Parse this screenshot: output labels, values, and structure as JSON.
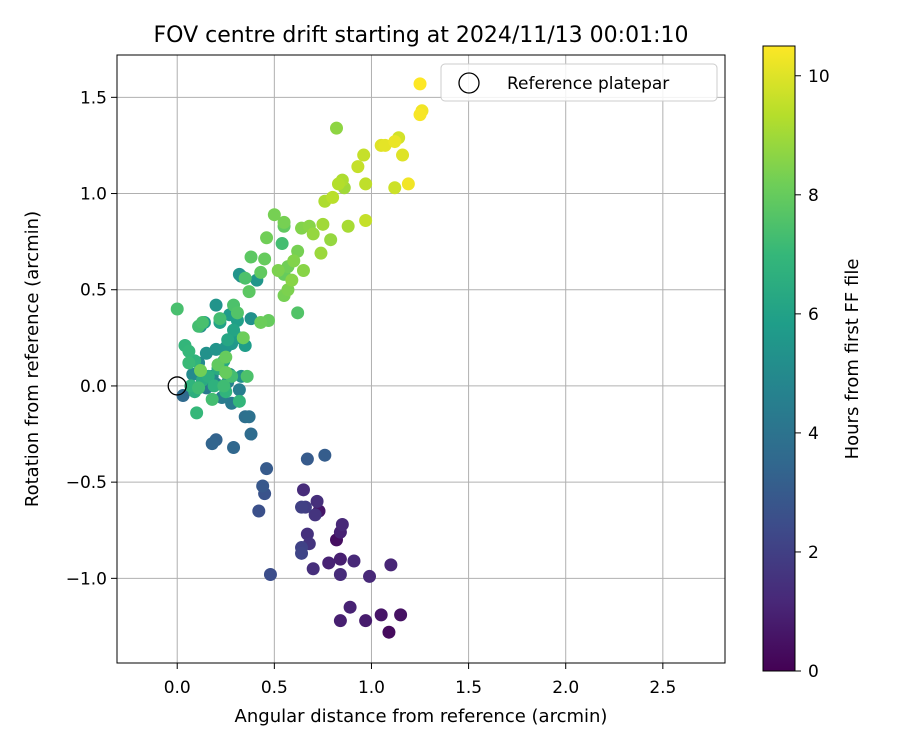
{
  "chart_data": {
    "type": "scatter",
    "title": "FOV centre drift starting at 2024/11/13 00:01:10",
    "xlabel": "Angular distance from reference (arcmin)",
    "ylabel": "Rotation from reference (arcmin)",
    "xlim": [
      -0.31,
      2.82
    ],
    "ylim": [
      -1.44,
      1.72
    ],
    "xticks": [
      0.0,
      0.5,
      1.0,
      1.5,
      2.0,
      2.5
    ],
    "xtick_labels": [
      "0.0",
      "0.5",
      "1.0",
      "1.5",
      "2.0",
      "2.5"
    ],
    "yticks": [
      -1.0,
      -0.5,
      0.0,
      0.5,
      1.0,
      1.5
    ],
    "ytick_labels": [
      "−1.0",
      "−0.5",
      "0.0",
      "0.5",
      "1.0",
      "1.5"
    ],
    "grid": true,
    "legend": {
      "placement": "upper right",
      "entries": [
        {
          "label": "Reference platepar",
          "marker": "open-circle",
          "x": 0.0,
          "y": 0.0
        }
      ]
    },
    "colorbar": {
      "label": "Hours from first FF file",
      "colormap": "viridis",
      "range": [
        0,
        10.5
      ],
      "ticks": [
        0,
        2,
        4,
        6,
        8,
        10
      ],
      "tick_labels": [
        "0",
        "2",
        "4",
        "6",
        "8",
        "10"
      ]
    },
    "colormap_stops": [
      "#440154",
      "#482878",
      "#3e4989",
      "#31688e",
      "#26828e",
      "#1f9e89",
      "#35b779",
      "#6ece58",
      "#b5de2b",
      "#fde725"
    ],
    "series": [
      {
        "points": [
          [
            1.09,
            -1.28,
            0.3
          ],
          [
            1.15,
            -1.19,
            0.5
          ],
          [
            1.05,
            -1.19,
            0.6
          ],
          [
            0.97,
            -1.22,
            0.8
          ],
          [
            0.84,
            -1.22,
            0.9
          ],
          [
            0.89,
            -1.15,
            1.0
          ],
          [
            1.1,
            -0.93,
            1.1
          ],
          [
            0.99,
            -0.99,
            1.2
          ],
          [
            0.84,
            -0.98,
            1.3
          ],
          [
            0.7,
            -0.95,
            1.4
          ],
          [
            0.78,
            -0.92,
            1.0
          ],
          [
            0.84,
            -0.9,
            0.9
          ],
          [
            0.91,
            -0.91,
            1.2
          ],
          [
            0.82,
            -0.8,
            0.4
          ],
          [
            0.84,
            -0.76,
            1.0
          ],
          [
            0.85,
            -0.72,
            1.2
          ],
          [
            0.67,
            -0.77,
            1.5
          ],
          [
            0.68,
            -0.82,
            1.6
          ],
          [
            0.73,
            -0.65,
            0.6
          ],
          [
            0.72,
            -0.6,
            1.4
          ],
          [
            0.71,
            -0.67,
            1.6
          ],
          [
            0.66,
            -0.63,
            1.9
          ],
          [
            0.64,
            -0.63,
            2.0
          ],
          [
            0.65,
            -0.54,
            1.3
          ],
          [
            0.64,
            -0.84,
            2.1
          ],
          [
            0.64,
            -0.87,
            2.2
          ],
          [
            0.48,
            -0.98,
            2.5
          ],
          [
            0.42,
            -0.65,
            2.6
          ],
          [
            0.45,
            -0.56,
            2.7
          ],
          [
            0.44,
            -0.52,
            2.9
          ],
          [
            0.46,
            -0.43,
            3.0
          ],
          [
            0.67,
            -0.38,
            3.0
          ],
          [
            0.76,
            -0.36,
            3.1
          ],
          [
            0.2,
            -0.28,
            3.3
          ],
          [
            0.18,
            -0.3,
            3.4
          ],
          [
            0.29,
            -0.32,
            3.5
          ],
          [
            0.38,
            -0.25,
            3.7
          ],
          [
            0.35,
            -0.16,
            3.8
          ],
          [
            0.37,
            -0.16,
            3.9
          ],
          [
            0.03,
            -0.05,
            3.6
          ],
          [
            0.15,
            -0.01,
            4.2
          ],
          [
            0.23,
            -0.06,
            4.4
          ],
          [
            0.28,
            -0.09,
            4.3
          ],
          [
            0.32,
            -0.02,
            4.5
          ],
          [
            0.26,
            0.02,
            4.7
          ],
          [
            0.2,
            0.01,
            4.8
          ],
          [
            0.18,
            0.05,
            4.9
          ],
          [
            0.23,
            0.09,
            5.0
          ],
          [
            0.27,
            0.06,
            5.1
          ],
          [
            0.33,
            0.05,
            5.2
          ],
          [
            0.08,
            0.06,
            5.0
          ],
          [
            0.11,
            0.12,
            4.9
          ],
          [
            0.15,
            0.17,
            5.3
          ],
          [
            0.2,
            0.19,
            5.4
          ],
          [
            0.25,
            0.2,
            5.5
          ],
          [
            0.28,
            0.22,
            5.6
          ],
          [
            0.32,
            0.25,
            5.7
          ],
          [
            0.35,
            0.21,
            5.8
          ],
          [
            0.38,
            0.35,
            5.3
          ],
          [
            0.33,
            0.57,
            5.2
          ],
          [
            0.32,
            0.58,
            5.4
          ],
          [
            0.41,
            0.55,
            5.5
          ],
          [
            0.2,
            0.42,
            5.4
          ],
          [
            0.27,
            0.37,
            5.7
          ],
          [
            0.31,
            0.34,
            5.9
          ],
          [
            0.12,
            0.31,
            5.0
          ],
          [
            0.14,
            0.33,
            5.8
          ],
          [
            0.22,
            0.33,
            6.0
          ],
          [
            0.29,
            0.29,
            6.1
          ],
          [
            0.26,
            0.24,
            6.2
          ],
          [
            0.24,
            0.13,
            6.3
          ],
          [
            0.21,
            0.09,
            6.4
          ],
          [
            0.13,
            0.03,
            6.4
          ],
          [
            0.1,
            -0.01,
            6.5
          ],
          [
            0.16,
            0.05,
            6.6
          ],
          [
            0.19,
            0.0,
            6.7
          ],
          [
            0.25,
            -0.03,
            6.8
          ],
          [
            0.32,
            -0.08,
            6.9
          ],
          [
            0.07,
            0.0,
            6.8
          ],
          [
            0.09,
            -0.03,
            6.6
          ],
          [
            0.04,
            0.21,
            6.9
          ],
          [
            0.06,
            0.18,
            7.0
          ],
          [
            0.09,
            0.13,
            6.8
          ],
          [
            0.06,
            0.12,
            7.1
          ],
          [
            0.11,
            -0.01,
            7.2
          ],
          [
            0.1,
            -0.14,
            7.0
          ],
          [
            0.18,
            -0.07,
            7.3
          ],
          [
            0.24,
            0.0,
            7.2
          ],
          [
            0.28,
            0.05,
            7.3
          ],
          [
            0.36,
            0.05,
            7.5
          ],
          [
            0.0,
            0.4,
            7.4
          ],
          [
            0.11,
            0.31,
            7.3
          ],
          [
            0.13,
            0.33,
            7.4
          ],
          [
            0.22,
            0.35,
            7.3
          ],
          [
            0.29,
            0.42,
            7.5
          ],
          [
            0.31,
            0.38,
            7.6
          ],
          [
            0.35,
            0.56,
            7.5
          ],
          [
            0.37,
            0.49,
            7.8
          ],
          [
            0.38,
            0.67,
            7.8
          ],
          [
            0.43,
            0.59,
            7.9
          ],
          [
            0.45,
            0.66,
            8.0
          ],
          [
            0.47,
            0.34,
            8.0
          ],
          [
            0.43,
            0.33,
            8.1
          ],
          [
            0.34,
            0.25,
            8.1
          ],
          [
            0.25,
            0.07,
            8.0
          ],
          [
            0.12,
            0.08,
            8.2
          ],
          [
            0.21,
            0.11,
            7.9
          ],
          [
            0.25,
            0.15,
            8.0
          ],
          [
            0.46,
            0.77,
            8.2
          ],
          [
            0.5,
            0.89,
            8.3
          ],
          [
            0.55,
            0.85,
            8.3
          ],
          [
            0.54,
            0.74,
            7.3
          ],
          [
            0.55,
            0.83,
            7.9
          ],
          [
            0.57,
            0.62,
            8.2
          ],
          [
            0.52,
            0.6,
            8.4
          ],
          [
            0.55,
            0.58,
            8.0
          ],
          [
            0.55,
            0.47,
            8.3
          ],
          [
            0.57,
            0.5,
            8.4
          ],
          [
            0.59,
            0.55,
            8.6
          ],
          [
            0.6,
            0.65,
            8.5
          ],
          [
            0.62,
            0.7,
            8.3
          ],
          [
            0.65,
            0.6,
            8.6
          ],
          [
            0.62,
            0.38,
            7.6
          ],
          [
            0.64,
            0.82,
            8.5
          ],
          [
            0.68,
            0.83,
            8.6
          ],
          [
            0.7,
            0.79,
            8.8
          ],
          [
            0.74,
            0.69,
            8.9
          ],
          [
            0.75,
            0.84,
            9.0
          ],
          [
            0.79,
            0.76,
            8.8
          ],
          [
            0.76,
            0.96,
            9.2
          ],
          [
            0.8,
            0.98,
            9.4
          ],
          [
            0.83,
            1.05,
            9.3
          ],
          [
            0.85,
            1.07,
            9.2
          ],
          [
            0.86,
            1.03,
            9.0
          ],
          [
            0.88,
            0.83,
            9.1
          ],
          [
            0.82,
            1.34,
            8.7
          ],
          [
            0.93,
            1.14,
            9.6
          ],
          [
            0.96,
            1.2,
            9.6
          ],
          [
            0.97,
            1.05,
            9.5
          ],
          [
            0.97,
            0.86,
            9.6
          ],
          [
            1.05,
            1.25,
            10.0
          ],
          [
            1.07,
            1.25,
            10.1
          ],
          [
            1.12,
            1.03,
            9.7
          ],
          [
            1.12,
            1.27,
            10.2
          ],
          [
            1.14,
            1.29,
            9.8
          ],
          [
            1.16,
            1.2,
            10.0
          ],
          [
            1.19,
            1.05,
            10.3
          ],
          [
            1.25,
            1.41,
            10.4
          ],
          [
            1.26,
            1.43,
            10.3
          ],
          [
            1.25,
            1.57,
            10.5
          ]
        ]
      }
    ]
  }
}
